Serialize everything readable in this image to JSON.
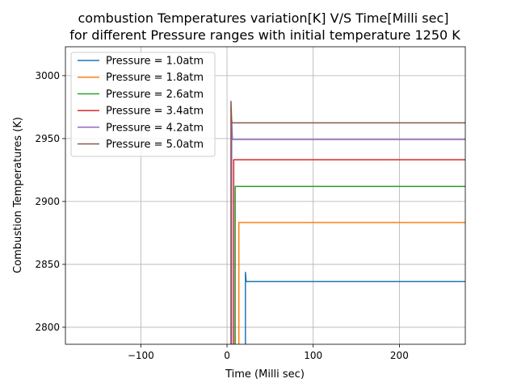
{
  "chart_data": {
    "type": "line",
    "title": "combustion Temperatures variation[K] V/S Time[Milli sec]",
    "subtitle": "for different Pressure ranges with initial temperature 1250 K",
    "xlabel": "Time (Milli sec)",
    "ylabel": "Combustion Temperatures (K)",
    "xlim": [
      -187.5,
      276.5
    ],
    "ylim": [
      2786.5,
      3023
    ],
    "xticks": [
      -100,
      0,
      100,
      200
    ],
    "yticks": [
      2800,
      2850,
      2900,
      2950,
      3000
    ],
    "grid": true,
    "legend_placement": "top-left",
    "series": [
      {
        "name": "Pressure = 1.0atm",
        "color": "#1f77b4",
        "x": [
          21.3,
          21.3,
          22.3,
          276.5
        ],
        "y": [
          2700,
          2844,
          2836.3,
          2836.3
        ]
      },
      {
        "name": "Pressure = 1.8atm",
        "color": "#ff7f0e",
        "x": [
          13.8,
          13.8,
          276.5
        ],
        "y": [
          2700,
          2883.3,
          2883.3
        ]
      },
      {
        "name": "Pressure = 2.6atm",
        "color": "#2ca02c",
        "x": [
          9.5,
          9.5,
          276.5
        ],
        "y": [
          2700,
          2912,
          2912
        ]
      },
      {
        "name": "Pressure = 3.4atm",
        "color": "#d62728",
        "x": [
          7.8,
          7.8,
          276.5
        ],
        "y": [
          2700,
          2933.2,
          2933.2
        ]
      },
      {
        "name": "Pressure = 4.2atm",
        "color": "#9467bd",
        "x": [
          5.4,
          5.4,
          6.3,
          276.5
        ],
        "y": [
          2700,
          2965,
          2949.3,
          2949.3
        ]
      },
      {
        "name": "Pressure = 5.0atm",
        "color": "#8c564b",
        "x": [
          4.6,
          4.6,
          5.5,
          276.5
        ],
        "y": [
          2700,
          2980,
          2962.5,
          2962.5
        ]
      }
    ]
  }
}
